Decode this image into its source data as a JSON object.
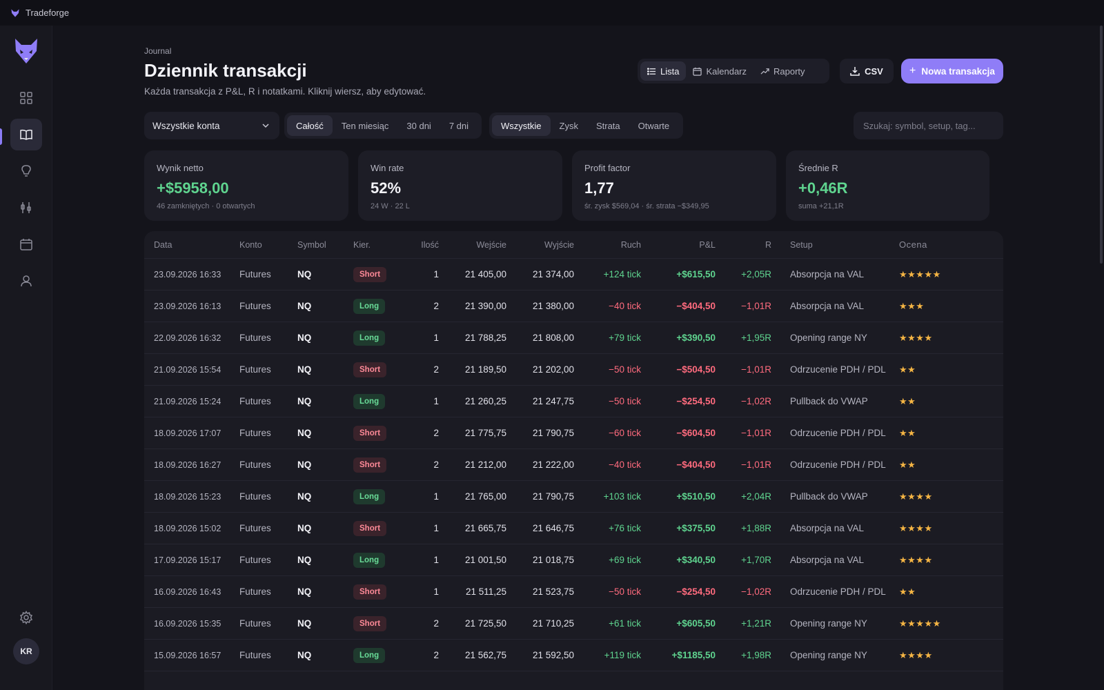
{
  "app": {
    "name": "Tradeforge"
  },
  "header": {
    "eyebrow": "Journal",
    "title": "Dziennik transakcji",
    "subtitle": "Każda transakcja z P&L, R i notatkami. Kliknij wiersz, aby edytować."
  },
  "views": {
    "list": "Lista",
    "calendar": "Kalendarz",
    "reports": "Raporty"
  },
  "actions": {
    "csv": "CSV",
    "new_trade": "Nowa transakcja"
  },
  "filters": {
    "account": "Wszystkie konta",
    "range": [
      "Całość",
      "Ten miesiąc",
      "30 dni",
      "7 dni"
    ],
    "range_selected": "Całość",
    "outcome": [
      "Wszystkie",
      "Zysk",
      "Strata",
      "Otwarte"
    ],
    "outcome_selected": "Wszystkie",
    "search_placeholder": "Szukaj: symbol, setup, tag..."
  },
  "stats": [
    {
      "label": "Wynik netto",
      "value": "+$5958,00",
      "sub": "46 zamkniętych · 0 otwartych",
      "tone": "pos"
    },
    {
      "label": "Win rate",
      "value": "52%",
      "sub": "24 W · 22 L",
      "tone": "neutral"
    },
    {
      "label": "Profit factor",
      "value": "1,77",
      "sub": "śr. zysk $569,04 · śr. strata −$349,95",
      "tone": "neutral"
    },
    {
      "label": "Średnie R",
      "value": "+0,46R",
      "sub": "suma +21,1R",
      "tone": "pos"
    }
  ],
  "table": {
    "columns": [
      "Data",
      "Konto",
      "Symbol",
      "Kier.",
      "Ilość",
      "Wejście",
      "Wyjście",
      "Ruch",
      "P&L",
      "R",
      "Setup",
      "Ocena"
    ],
    "rows": [
      {
        "date": "23.09.2026 16:33",
        "account": "Futures",
        "symbol": "NQ",
        "dir": "Short",
        "qty": "1",
        "entry": "21 405,00",
        "exit": "21 374,00",
        "move": "+124 tick",
        "pnl": "+$615,50",
        "r": "+2,05R",
        "setup": "Absorpcja na VAL",
        "rating": "★★★★★"
      },
      {
        "date": "23.09.2026 16:13",
        "account": "Futures",
        "symbol": "NQ",
        "dir": "Long",
        "qty": "2",
        "entry": "21 390,00",
        "exit": "21 380,00",
        "move": "−40 tick",
        "pnl": "−$404,50",
        "r": "−1,01R",
        "setup": "Absorpcja na VAL",
        "rating": "★★★"
      },
      {
        "date": "22.09.2026 16:32",
        "account": "Futures",
        "symbol": "NQ",
        "dir": "Long",
        "qty": "1",
        "entry": "21 788,25",
        "exit": "21 808,00",
        "move": "+79 tick",
        "pnl": "+$390,50",
        "r": "+1,95R",
        "setup": "Opening range NY",
        "rating": "★★★★"
      },
      {
        "date": "21.09.2026 15:54",
        "account": "Futures",
        "symbol": "NQ",
        "dir": "Short",
        "qty": "2",
        "entry": "21 189,50",
        "exit": "21 202,00",
        "move": "−50 tick",
        "pnl": "−$504,50",
        "r": "−1,01R",
        "setup": "Odrzucenie PDH / PDL",
        "rating": "★★"
      },
      {
        "date": "21.09.2026 15:24",
        "account": "Futures",
        "symbol": "NQ",
        "dir": "Long",
        "qty": "1",
        "entry": "21 260,25",
        "exit": "21 247,75",
        "move": "−50 tick",
        "pnl": "−$254,50",
        "r": "−1,02R",
        "setup": "Pullback do VWAP",
        "rating": "★★"
      },
      {
        "date": "18.09.2026 17:07",
        "account": "Futures",
        "symbol": "NQ",
        "dir": "Short",
        "qty": "2",
        "entry": "21 775,75",
        "exit": "21 790,75",
        "move": "−60 tick",
        "pnl": "−$604,50",
        "r": "−1,01R",
        "setup": "Odrzucenie PDH / PDL",
        "rating": "★★"
      },
      {
        "date": "18.09.2026 16:27",
        "account": "Futures",
        "symbol": "NQ",
        "dir": "Short",
        "qty": "2",
        "entry": "21 212,00",
        "exit": "21 222,00",
        "move": "−40 tick",
        "pnl": "−$404,50",
        "r": "−1,01R",
        "setup": "Odrzucenie PDH / PDL",
        "rating": "★★"
      },
      {
        "date": "18.09.2026 15:23",
        "account": "Futures",
        "symbol": "NQ",
        "dir": "Long",
        "qty": "1",
        "entry": "21 765,00",
        "exit": "21 790,75",
        "move": "+103 tick",
        "pnl": "+$510,50",
        "r": "+2,04R",
        "setup": "Pullback do VWAP",
        "rating": "★★★★"
      },
      {
        "date": "18.09.2026 15:02",
        "account": "Futures",
        "symbol": "NQ",
        "dir": "Short",
        "qty": "1",
        "entry": "21 665,75",
        "exit": "21 646,75",
        "move": "+76 tick",
        "pnl": "+$375,50",
        "r": "+1,88R",
        "setup": "Absorpcja na VAL",
        "rating": "★★★★"
      },
      {
        "date": "17.09.2026 15:17",
        "account": "Futures",
        "symbol": "NQ",
        "dir": "Long",
        "qty": "1",
        "entry": "21 001,50",
        "exit": "21 018,75",
        "move": "+69 tick",
        "pnl": "+$340,50",
        "r": "+1,70R",
        "setup": "Absorpcja na VAL",
        "rating": "★★★★"
      },
      {
        "date": "16.09.2026 16:43",
        "account": "Futures",
        "symbol": "NQ",
        "dir": "Short",
        "qty": "1",
        "entry": "21 511,25",
        "exit": "21 523,75",
        "move": "−50 tick",
        "pnl": "−$254,50",
        "r": "−1,02R",
        "setup": "Odrzucenie PDH / PDL",
        "rating": "★★"
      },
      {
        "date": "16.09.2026 15:35",
        "account": "Futures",
        "symbol": "NQ",
        "dir": "Short",
        "qty": "2",
        "entry": "21 725,50",
        "exit": "21 710,25",
        "move": "+61 tick",
        "pnl": "+$605,50",
        "r": "+1,21R",
        "setup": "Opening range NY",
        "rating": "★★★★★"
      },
      {
        "date": "15.09.2026 16:57",
        "account": "Futures",
        "symbol": "NQ",
        "dir": "Long",
        "qty": "2",
        "entry": "21 562,75",
        "exit": "21 592,50",
        "move": "+119 tick",
        "pnl": "+$1185,50",
        "r": "+1,98R",
        "setup": "Opening range NY",
        "rating": "★★★★"
      }
    ]
  },
  "user": {
    "initials": "KR"
  },
  "colors": {
    "accent": "#8f7df7",
    "positive": "#5fd48f",
    "negative": "#ff6b7e",
    "star": "#f5b544"
  }
}
